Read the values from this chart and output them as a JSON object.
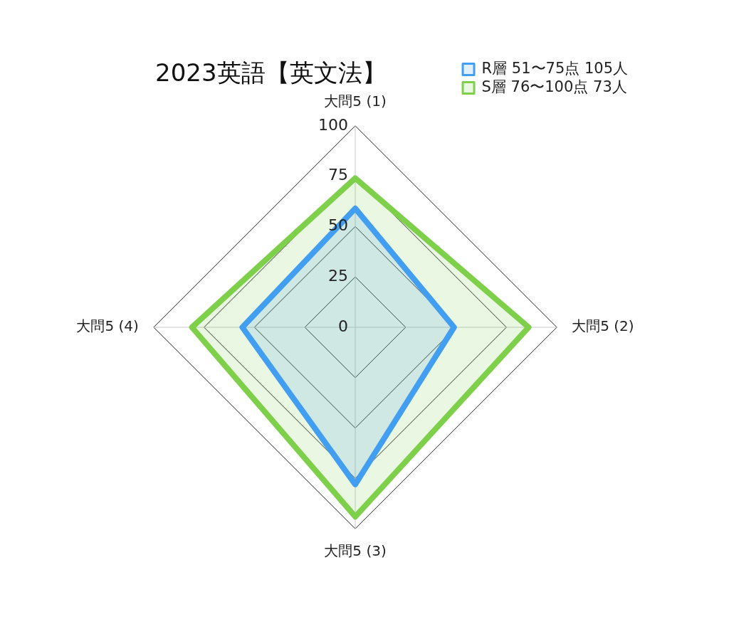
{
  "chart_data": {
    "type": "radar",
    "title": "2023英語【英文法】",
    "categories": [
      "大問5 (1)",
      "大問5 (2)",
      "大問5 (3)",
      "大問5 (4)"
    ],
    "series": [
      {
        "name": "R層 51〜75点 105人",
        "color": "#429ef0",
        "values": [
          59,
          49,
          78,
          56
        ]
      },
      {
        "name": "S層 76〜100点 73人",
        "color": "#7ed04a",
        "values": [
          74,
          86,
          94,
          81
        ]
      }
    ],
    "ylim": [
      0,
      100
    ],
    "yticks": [
      0,
      25,
      50,
      75,
      100
    ],
    "grid": true,
    "legend": "top right"
  }
}
